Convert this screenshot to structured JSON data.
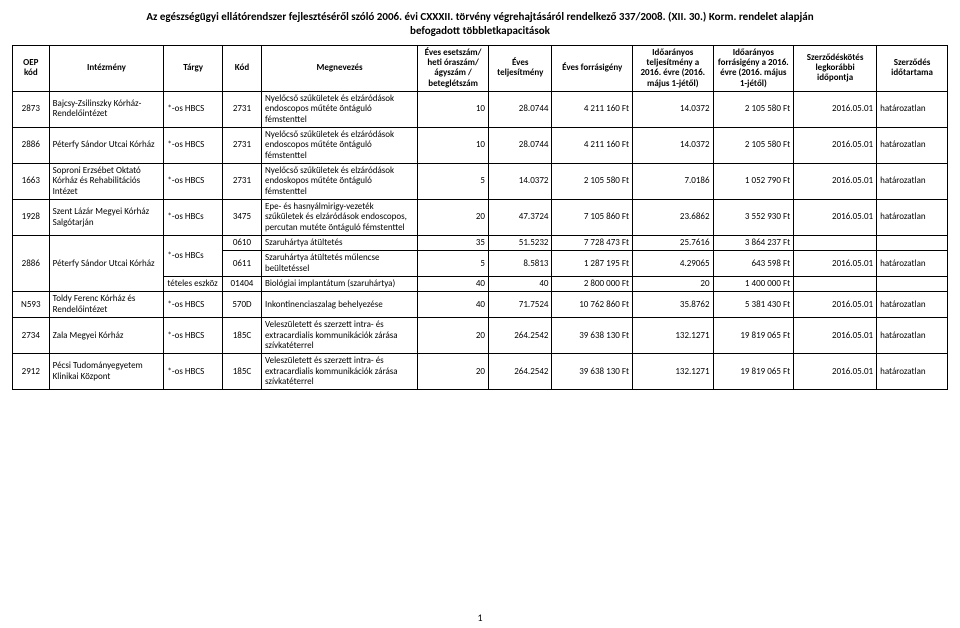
{
  "title_line1": "Az egészségügyi ellátórendszer fejlesztéséről szóló 2006. évi CXXXII. törvény végrehajtásáról rendelkező 337/2008. (XII. 30.) Korm. rendelet alapján",
  "title_line2": "befogadott többletkapacitások",
  "page_number": "1",
  "headers": {
    "oep": "OEP kód",
    "int": "Intézmény",
    "targy": "Tárgy",
    "kod": "Kód",
    "meg": "Megnevezés",
    "eset": "Éves esetszám/ heti óraszám/ ágyszám / beteglétszám",
    "telj": "Éves teljesítmény",
    "forr": "Éves forrásigény",
    "ido1": "Időarányos teljesítmény a 2016. évre (2016. május 1-jétől)",
    "ido2": "Időarányos forrásigény a 2016. évre (2016. május 1-jétől)",
    "szk": "Szerződéskötés legkorábbi időpontja",
    "szi": "Szerződés időtartama"
  },
  "rows": [
    {
      "oep": "2873",
      "int": "Bajcsy-Zsilinszky Kórház-Rendelőintézet",
      "targy": "*-os HBCS",
      "kod": "2731",
      "meg": "Nyelőcső szűkületek és elzáródások endoscopos műtéte öntáguló fémstenttel",
      "eset": "10",
      "telj": "28.0744",
      "forr": "4 211 160 Ft",
      "ido1": "14.0372",
      "ido2": "2 105 580 Ft",
      "szk": "2016.05.01",
      "szi": "határozatlan"
    },
    {
      "oep": "2886",
      "int": "Péterfy Sándor Utcai Kórház",
      "targy": "*-os HBCS",
      "kod": "2731",
      "meg": "Nyelőcső szűkületek és elzáródások endoscopos műtéte öntáguló fémstenttel",
      "eset": "10",
      "telj": "28.0744",
      "forr": "4 211 160 Ft",
      "ido1": "14.0372",
      "ido2": "2 105 580 Ft",
      "szk": "2016.05.01",
      "szi": "határozatlan"
    },
    {
      "oep": "1663",
      "int": "Soproni Erzsébet Oktató Kórház és Rehabilitációs Intézet",
      "targy": "*-os HBCS",
      "kod": "2731",
      "meg": "Nyelőcső szűkületek és elzáródások endoskopos műtéte öntáguló fémstenttel",
      "eset": "5",
      "telj": "14.0372",
      "forr": "2 105 580 Ft",
      "ido1": "7.0186",
      "ido2": "1 052 790 Ft",
      "szk": "2016.05.01",
      "szi": "határozatlan"
    },
    {
      "oep": "1928",
      "int": "Szent Lázár Megyei Kórház Salgótarján",
      "targy": "*-os HBCs",
      "kod": "3475",
      "meg": "Epe- és hasnyálmirigy-vezeték szűkületek és elzáródások endoscopos, percutan mutéte öntáguló fémstenttel",
      "eset": "20",
      "telj": "47.3724",
      "forr": "7 105 860 Ft",
      "ido1": "23.6862",
      "ido2": "3 552 930 Ft",
      "szk": "2016.05.01",
      "szi": "határozatlan"
    },
    {
      "oep": "2886",
      "int": "Péterfy Sándor Utcai Kórház",
      "span_oep": 3,
      "span_int": 3,
      "targy": "*-os HBCs",
      "span_targy": 2,
      "kod": "0610",
      "meg": "Szaruhártya átültetés",
      "eset": "35",
      "telj": "51.5232",
      "forr": "7 728 473 Ft",
      "ido1": "25.7616",
      "ido2": "3 864 237 Ft",
      "szk": "",
      "szi": ""
    },
    {
      "kod": "0611",
      "meg": "Szaruhártya átültetés műlencse beültetéssel",
      "eset": "5",
      "telj": "8.5813",
      "forr": "1 287 195 Ft",
      "ido1": "4.29065",
      "ido2": "643 598 Ft",
      "szk": "2016.05.01",
      "szi": "határozatlan"
    },
    {
      "targy": "tételes eszköz",
      "kod": "01404",
      "meg": "Biológiai implantátum (szaruhártya)",
      "eset": "40",
      "telj": "40",
      "forr": "2 800 000 Ft",
      "ido1": "20",
      "ido2": "1 400 000 Ft",
      "szk": "",
      "szi": ""
    },
    {
      "oep": "N593",
      "int": "Toldy Ferenc Kórház és Rendelőintézet",
      "targy": "*-os HBCS",
      "kod": "570D",
      "meg": "Inkontinenciaszalag behelyezése",
      "eset": "40",
      "telj": "71.7524",
      "forr": "10 762 860 Ft",
      "ido1": "35.8762",
      "ido2": "5 381 430 Ft",
      "szk": "2016.05.01",
      "szi": "határozatlan"
    },
    {
      "oep": "2734",
      "int": "Zala Megyei Kórház",
      "targy": "*-os HBCS",
      "kod": "185C",
      "meg": "Veleszületett és szerzett intra- és extracardialis kommunikációk zárása szívkatéterrel",
      "eset": "20",
      "telj": "264.2542",
      "forr": "39 638 130 Ft",
      "ido1": "132.1271",
      "ido2": "19 819 065 Ft",
      "szk": "2016.05.01",
      "szi": "határozatlan"
    },
    {
      "oep": "2912",
      "int": "Pécsi Tudományegyetem Klinikai Központ",
      "targy": "*-os HBCS",
      "kod": "185C",
      "meg": "Veleszületett és szerzett intra- és extracardialis kommunikációk zárása szívkatéterrel",
      "eset": "20",
      "telj": "264.2542",
      "forr": "39 638 130 Ft",
      "ido1": "132.1271",
      "ido2": "19 819 065 Ft",
      "szk": "2016.05.01",
      "szi": "határozatlan"
    }
  ]
}
